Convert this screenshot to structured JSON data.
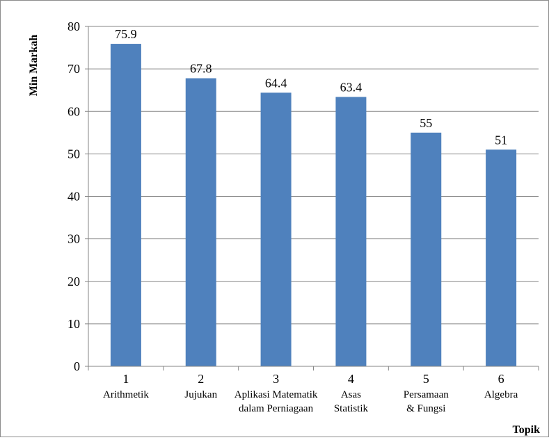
{
  "chart_data": {
    "type": "bar",
    "categories": [
      "1",
      "2",
      "3",
      "4",
      "5",
      "6"
    ],
    "category_sublabels": [
      [
        "Arithmetik"
      ],
      [
        "Jujukan"
      ],
      [
        "Aplikasi Matematik",
        "dalam Perniagaan"
      ],
      [
        "Asas",
        "Statistik"
      ],
      [
        "Persamaan",
        "& Fungsi"
      ],
      [
        "Algebra"
      ]
    ],
    "values": [
      75.9,
      67.8,
      64.4,
      63.4,
      55,
      51
    ],
    "data_labels": [
      "75.9",
      "67.8",
      "64.4",
      "63.4",
      "55",
      "51"
    ],
    "title": "",
    "xlabel": "Topik",
    "ylabel": "Min Markah",
    "ylim": [
      0,
      80
    ],
    "yticks": [
      "0",
      "10",
      "20",
      "30",
      "40",
      "50",
      "60",
      "70",
      "80"
    ],
    "grid": true,
    "legend": "none",
    "colors": {
      "bar": "#4f81bd",
      "grid": "#868686",
      "axis": "#868686",
      "frame": "#8c8c8c"
    }
  }
}
